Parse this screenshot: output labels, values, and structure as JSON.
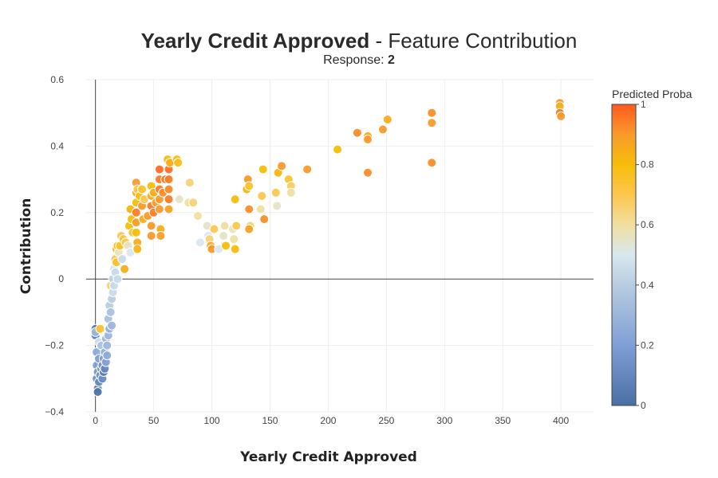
{
  "chart_data": {
    "type": "scatter",
    "title_bold": "Yearly Credit Approved",
    "title_rest": "- Feature Contribution",
    "subtitle_label": "Response:",
    "subtitle_value": "2",
    "xlabel": "Yearly Credit Approved",
    "ylabel": "Contribution",
    "xlim": [
      -8,
      428
    ],
    "ylim": [
      -0.4,
      0.6
    ],
    "xticks": [
      0,
      50,
      100,
      150,
      200,
      250,
      300,
      350,
      400
    ],
    "yticks": [
      -0.4,
      -0.2,
      0,
      0.2,
      0.4,
      0.6
    ],
    "grid": true,
    "colorbar": {
      "title": "Predicted Proba",
      "min": 0,
      "max": 1,
      "ticks": [
        0,
        0.2,
        0.4,
        0.6,
        0.8,
        1
      ],
      "stops": [
        {
          "v": 0.0,
          "color": "#4a6fa5"
        },
        {
          "v": 0.2,
          "color": "#7f9fd6"
        },
        {
          "v": 0.4,
          "color": "#b8cde0"
        },
        {
          "v": 0.5,
          "color": "#d8e8ef"
        },
        {
          "v": 0.6,
          "color": "#f1dfa0"
        },
        {
          "v": 0.7,
          "color": "#fdc64e"
        },
        {
          "v": 0.8,
          "color": "#f6bd08"
        },
        {
          "v": 0.9,
          "color": "#f99a2c"
        },
        {
          "v": 1.0,
          "color": "#fe5a1d"
        }
      ]
    },
    "points": [
      {
        "x": 0,
        "y": -0.15,
        "p": 0.05
      },
      {
        "x": 0,
        "y": -0.17,
        "p": 0.08
      },
      {
        "x": 0,
        "y": -0.16,
        "p": 0.3
      },
      {
        "x": 1,
        "y": -0.22,
        "p": 0.25
      },
      {
        "x": 1,
        "y": -0.26,
        "p": 0.2
      },
      {
        "x": 1,
        "y": -0.3,
        "p": 0.15
      },
      {
        "x": 2,
        "y": -0.33,
        "p": 0.05
      },
      {
        "x": 2,
        "y": -0.34,
        "p": 0.02
      },
      {
        "x": 2,
        "y": -0.28,
        "p": 0.18
      },
      {
        "x": 3,
        "y": -0.31,
        "p": 0.1
      },
      {
        "x": 3,
        "y": -0.24,
        "p": 0.2
      },
      {
        "x": 3,
        "y": -0.19,
        "p": 0.45
      },
      {
        "x": 4,
        "y": -0.29,
        "p": 0.15
      },
      {
        "x": 4,
        "y": -0.15,
        "p": 0.75
      },
      {
        "x": 5,
        "y": -0.27,
        "p": 0.12
      },
      {
        "x": 5,
        "y": -0.2,
        "p": 0.35
      },
      {
        "x": 6,
        "y": -0.3,
        "p": 0.12
      },
      {
        "x": 6,
        "y": -0.26,
        "p": 0.15
      },
      {
        "x": 7,
        "y": -0.24,
        "p": 0.2
      },
      {
        "x": 7,
        "y": -0.28,
        "p": 0.05
      },
      {
        "x": 8,
        "y": -0.27,
        "p": 0.1
      },
      {
        "x": 8,
        "y": -0.22,
        "p": 0.25
      },
      {
        "x": 9,
        "y": -0.25,
        "p": 0.2
      },
      {
        "x": 9,
        "y": -0.18,
        "p": 0.3
      },
      {
        "x": 10,
        "y": -0.23,
        "p": 0.25
      },
      {
        "x": 10,
        "y": -0.2,
        "p": 0.3
      },
      {
        "x": 11,
        "y": -0.17,
        "p": 0.3
      },
      {
        "x": 11,
        "y": -0.12,
        "p": 0.35
      },
      {
        "x": 12,
        "y": -0.15,
        "p": 0.28
      },
      {
        "x": 12,
        "y": -0.08,
        "p": 0.4
      },
      {
        "x": 13,
        "y": -0.1,
        "p": 0.35
      },
      {
        "x": 13,
        "y": -0.02,
        "p": 0.65
      },
      {
        "x": 14,
        "y": -0.06,
        "p": 0.4
      },
      {
        "x": 14,
        "y": -0.14,
        "p": 0.3
      },
      {
        "x": 15,
        "y": -0.04,
        "p": 0.45
      },
      {
        "x": 15,
        "y": 0.0,
        "p": 0.42
      },
      {
        "x": 16,
        "y": -0.02,
        "p": 0.45
      },
      {
        "x": 16,
        "y": 0.03,
        "p": 0.5
      },
      {
        "x": 17,
        "y": 0.02,
        "p": 0.45
      },
      {
        "x": 17,
        "y": 0.06,
        "p": 0.7
      },
      {
        "x": 18,
        "y": 0.05,
        "p": 0.75
      },
      {
        "x": 18,
        "y": 0.09,
        "p": 0.8
      },
      {
        "x": 19,
        "y": 0.1,
        "p": 0.8
      },
      {
        "x": 19,
        "y": 0.0,
        "p": 0.45
      },
      {
        "x": 20,
        "y": 0.08,
        "p": 0.55
      },
      {
        "x": 21,
        "y": 0.1,
        "p": 0.75
      },
      {
        "x": 22,
        "y": 0.13,
        "p": 0.7
      },
      {
        "x": 23,
        "y": 0.06,
        "p": 0.45
      },
      {
        "x": 24,
        "y": 0.12,
        "p": 0.72
      },
      {
        "x": 25,
        "y": 0.03,
        "p": 0.85
      },
      {
        "x": 26,
        "y": 0.11,
        "p": 0.7
      },
      {
        "x": 28,
        "y": 0.1,
        "p": 0.55
      },
      {
        "x": 29,
        "y": 0.16,
        "p": 0.8
      },
      {
        "x": 30,
        "y": 0.21,
        "p": 0.82
      },
      {
        "x": 30,
        "y": 0.08,
        "p": 0.5
      },
      {
        "x": 31,
        "y": 0.18,
        "p": 0.8
      },
      {
        "x": 32,
        "y": 0.14,
        "p": 0.75
      },
      {
        "x": 35,
        "y": 0.29,
        "p": 0.9
      },
      {
        "x": 35,
        "y": 0.26,
        "p": 0.85
      },
      {
        "x": 35,
        "y": 0.23,
        "p": 0.8
      },
      {
        "x": 35,
        "y": 0.2,
        "p": 0.95
      },
      {
        "x": 35,
        "y": 0.17,
        "p": 0.9
      },
      {
        "x": 35,
        "y": 0.14,
        "p": 0.8
      },
      {
        "x": 36,
        "y": 0.11,
        "p": 0.85
      },
      {
        "x": 36,
        "y": 0.09,
        "p": 0.82
      },
      {
        "x": 36,
        "y": 0.27,
        "p": 0.7
      },
      {
        "x": 38,
        "y": 0.25,
        "p": 0.8
      },
      {
        "x": 40,
        "y": 0.22,
        "p": 0.9
      },
      {
        "x": 40,
        "y": 0.27,
        "p": 0.75
      },
      {
        "x": 41,
        "y": 0.18,
        "p": 0.85
      },
      {
        "x": 42,
        "y": 0.24,
        "p": 0.7
      },
      {
        "x": 45,
        "y": 0.19,
        "p": 0.9
      },
      {
        "x": 48,
        "y": 0.28,
        "p": 0.8
      },
      {
        "x": 48,
        "y": 0.25,
        "p": 0.85
      },
      {
        "x": 48,
        "y": 0.22,
        "p": 0.95
      },
      {
        "x": 48,
        "y": 0.16,
        "p": 0.9
      },
      {
        "x": 48,
        "y": 0.13,
        "p": 0.9
      },
      {
        "x": 50,
        "y": 0.2,
        "p": 0.95
      },
      {
        "x": 50,
        "y": 0.26,
        "p": 0.85
      },
      {
        "x": 52,
        "y": 0.23,
        "p": 0.9
      },
      {
        "x": 55,
        "y": 0.33,
        "p": 0.97
      },
      {
        "x": 55,
        "y": 0.3,
        "p": 0.95
      },
      {
        "x": 55,
        "y": 0.27,
        "p": 0.95
      },
      {
        "x": 55,
        "y": 0.24,
        "p": 0.9
      },
      {
        "x": 55,
        "y": 0.21,
        "p": 0.9
      },
      {
        "x": 56,
        "y": 0.15,
        "p": 0.85
      },
      {
        "x": 56,
        "y": 0.13,
        "p": 0.88
      },
      {
        "x": 58,
        "y": 0.26,
        "p": 0.92
      },
      {
        "x": 60,
        "y": 0.3,
        "p": 0.95
      },
      {
        "x": 62,
        "y": 0.36,
        "p": 0.8
      },
      {
        "x": 63,
        "y": 0.33,
        "p": 0.97
      },
      {
        "x": 63,
        "y": 0.3,
        "p": 0.95
      },
      {
        "x": 63,
        "y": 0.27,
        "p": 0.93
      },
      {
        "x": 63,
        "y": 0.24,
        "p": 0.95
      },
      {
        "x": 63,
        "y": 0.21,
        "p": 0.88
      },
      {
        "x": 64,
        "y": 0.35,
        "p": 0.85
      },
      {
        "x": 70,
        "y": 0.36,
        "p": 0.8
      },
      {
        "x": 71,
        "y": 0.35,
        "p": 0.78
      },
      {
        "x": 72,
        "y": 0.24,
        "p": 0.55
      },
      {
        "x": 80,
        "y": 0.23,
        "p": 0.6
      },
      {
        "x": 81,
        "y": 0.29,
        "p": 0.65
      },
      {
        "x": 84,
        "y": 0.23,
        "p": 0.65
      },
      {
        "x": 88,
        "y": 0.19,
        "p": 0.6
      },
      {
        "x": 90,
        "y": 0.11,
        "p": 0.5
      },
      {
        "x": 96,
        "y": 0.16,
        "p": 0.55
      },
      {
        "x": 97,
        "y": 0.13,
        "p": 0.5
      },
      {
        "x": 98,
        "y": 0.12,
        "p": 0.65
      },
      {
        "x": 99,
        "y": 0.1,
        "p": 0.85
      },
      {
        "x": 100,
        "y": 0.09,
        "p": 0.9
      },
      {
        "x": 102,
        "y": 0.15,
        "p": 0.7
      },
      {
        "x": 106,
        "y": 0.09,
        "p": 0.5
      },
      {
        "x": 110,
        "y": 0.13,
        "p": 0.55
      },
      {
        "x": 111,
        "y": 0.16,
        "p": 0.6
      },
      {
        "x": 112,
        "y": 0.1,
        "p": 0.8
      },
      {
        "x": 118,
        "y": 0.15,
        "p": 0.55
      },
      {
        "x": 119,
        "y": 0.12,
        "p": 0.6
      },
      {
        "x": 120,
        "y": 0.09,
        "p": 0.8
      },
      {
        "x": 120,
        "y": 0.24,
        "p": 0.8
      },
      {
        "x": 121,
        "y": 0.16,
        "p": 0.7
      },
      {
        "x": 130,
        "y": 0.27,
        "p": 0.82
      },
      {
        "x": 131,
        "y": 0.3,
        "p": 0.9
      },
      {
        "x": 132,
        "y": 0.28,
        "p": 0.75
      },
      {
        "x": 132,
        "y": 0.21,
        "p": 0.92
      },
      {
        "x": 133,
        "y": 0.16,
        "p": 0.65
      },
      {
        "x": 132,
        "y": 0.15,
        "p": 0.88
      },
      {
        "x": 142,
        "y": 0.21,
        "p": 0.6
      },
      {
        "x": 143,
        "y": 0.25,
        "p": 0.7
      },
      {
        "x": 144,
        "y": 0.33,
        "p": 0.8
      },
      {
        "x": 145,
        "y": 0.18,
        "p": 0.92
      },
      {
        "x": 155,
        "y": 0.26,
        "p": 0.7
      },
      {
        "x": 156,
        "y": 0.22,
        "p": 0.55
      },
      {
        "x": 157,
        "y": 0.32,
        "p": 0.82
      },
      {
        "x": 160,
        "y": 0.34,
        "p": 0.9
      },
      {
        "x": 166,
        "y": 0.3,
        "p": 0.75
      },
      {
        "x": 168,
        "y": 0.28,
        "p": 0.68
      },
      {
        "x": 168,
        "y": 0.26,
        "p": 0.6
      },
      {
        "x": 182,
        "y": 0.33,
        "p": 0.9
      },
      {
        "x": 208,
        "y": 0.39,
        "p": 0.8
      },
      {
        "x": 225,
        "y": 0.44,
        "p": 0.92
      },
      {
        "x": 234,
        "y": 0.43,
        "p": 0.85
      },
      {
        "x": 234,
        "y": 0.42,
        "p": 0.9
      },
      {
        "x": 234,
        "y": 0.32,
        "p": 0.92
      },
      {
        "x": 247,
        "y": 0.45,
        "p": 0.9
      },
      {
        "x": 251,
        "y": 0.48,
        "p": 0.85
      },
      {
        "x": 289,
        "y": 0.5,
        "p": 0.92
      },
      {
        "x": 289,
        "y": 0.47,
        "p": 0.9
      },
      {
        "x": 289,
        "y": 0.35,
        "p": 0.92
      },
      {
        "x": 399,
        "y": 0.53,
        "p": 0.9
      },
      {
        "x": 399,
        "y": 0.52,
        "p": 0.85
      },
      {
        "x": 399,
        "y": 0.5,
        "p": 0.95
      },
      {
        "x": 400,
        "y": 0.49,
        "p": 0.9
      }
    ]
  }
}
